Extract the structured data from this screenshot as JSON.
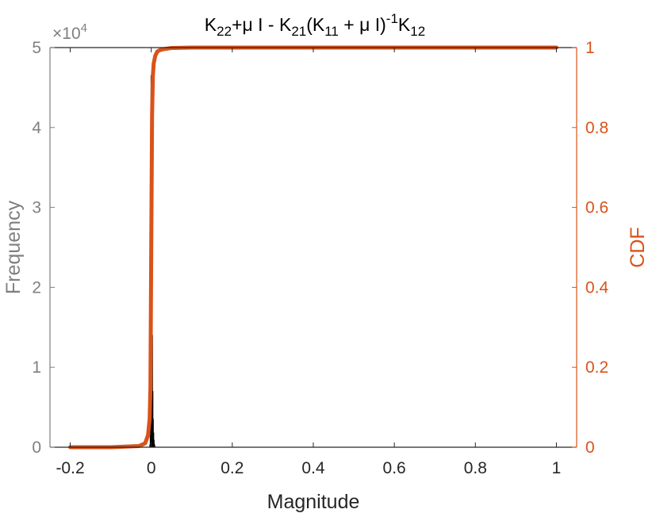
{
  "chart_data": {
    "type": "histogram+line",
    "title": {
      "parts": [
        "K",
        "22",
        "+μ I - K",
        "21",
        "(K",
        "11",
        " + μ I)",
        "-1",
        "K",
        "12"
      ]
    },
    "xlabel": "Magnitude",
    "ylabel_left": "Frequency",
    "ylabel_right": "CDF",
    "left_exponent": "×10",
    "left_exponent_power": "4",
    "xlim": [
      -0.25,
      1.05
    ],
    "ylim_left": [
      0,
      50000
    ],
    "ylim_right": [
      0,
      1
    ],
    "x_ticks": [
      "-0.2",
      "0",
      "0.2",
      "0.4",
      "0.6",
      "0.8",
      "1"
    ],
    "x_tick_values": [
      -0.2,
      0,
      0.2,
      0.4,
      0.6,
      0.8,
      1
    ],
    "left_ticks": [
      "0",
      "1",
      "2",
      "3",
      "4",
      "5"
    ],
    "left_tick_values": [
      0,
      10000,
      20000,
      30000,
      40000,
      50000
    ],
    "right_ticks": [
      "0",
      "0.2",
      "0.4",
      "0.6",
      "0.8",
      "1"
    ],
    "right_tick_values": [
      0,
      0.2,
      0.4,
      0.6,
      0.8,
      1
    ],
    "histogram": {
      "color": "#000000",
      "bin_edges": [
        -0.004,
        -0.003,
        -0.002,
        -0.001,
        0,
        0.001,
        0.002,
        0.003,
        0.004,
        0.005,
        0.006,
        0.007,
        0.008,
        0.009
      ],
      "counts": [
        300,
        1500,
        6000,
        46500,
        46000,
        27000,
        14000,
        7000,
        3500,
        1800,
        900,
        400,
        150
      ]
    },
    "cdf": {
      "color": "#d95319",
      "x": [
        -0.2,
        -0.1,
        -0.03,
        -0.015,
        -0.008,
        -0.004,
        -0.002,
        0,
        0.002,
        0.004,
        0.006,
        0.01,
        0.015,
        0.02,
        0.03,
        0.05,
        0.1,
        0.2,
        0.5,
        1.0
      ],
      "y": [
        0.0,
        0.0,
        0.003,
        0.01,
        0.03,
        0.07,
        0.15,
        0.5,
        0.83,
        0.93,
        0.96,
        0.98,
        0.99,
        0.993,
        0.996,
        0.999,
        1.0,
        1.0,
        1.0,
        1.0
      ]
    },
    "colors": {
      "left_axis": "#808080",
      "right_axis": "#d95319",
      "x_axis": "#262626"
    }
  }
}
